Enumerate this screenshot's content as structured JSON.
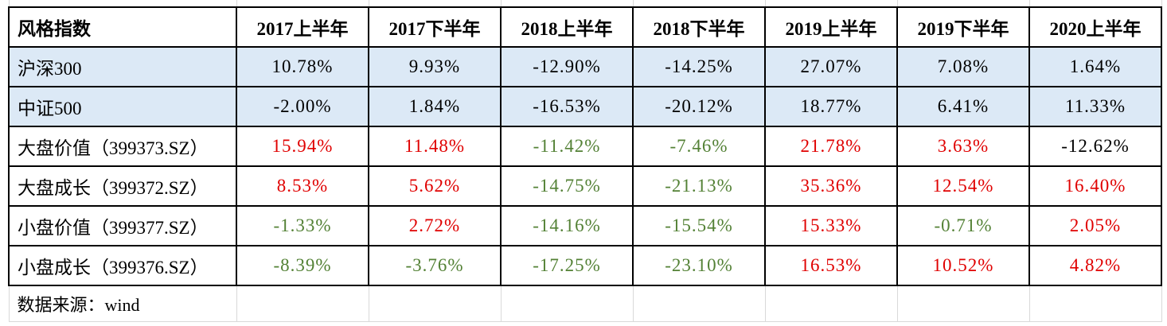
{
  "chart_data": {
    "type": "table",
    "columns": [
      "风格指数",
      "2017上半年",
      "2017下半年",
      "2018上半年",
      "2018下半年",
      "2019上半年",
      "2019下半年",
      "2020上半年"
    ],
    "rows": [
      {
        "label": "沪深300",
        "highlight": true,
        "values": [
          {
            "text": "10.78%",
            "color": "black"
          },
          {
            "text": "9.93%",
            "color": "black"
          },
          {
            "text": "-12.90%",
            "color": "black"
          },
          {
            "text": "-14.25%",
            "color": "black"
          },
          {
            "text": "27.07%",
            "color": "black"
          },
          {
            "text": "7.08%",
            "color": "black"
          },
          {
            "text": "1.64%",
            "color": "black"
          }
        ]
      },
      {
        "label": "中证500",
        "highlight": true,
        "values": [
          {
            "text": "-2.00%",
            "color": "black"
          },
          {
            "text": "1.84%",
            "color": "black"
          },
          {
            "text": "-16.53%",
            "color": "black"
          },
          {
            "text": "-20.12%",
            "color": "black"
          },
          {
            "text": "18.77%",
            "color": "black"
          },
          {
            "text": "6.41%",
            "color": "black"
          },
          {
            "text": "11.33%",
            "color": "black"
          }
        ]
      },
      {
        "label": "大盘价值（399373.SZ）",
        "highlight": false,
        "values": [
          {
            "text": "15.94%",
            "color": "red"
          },
          {
            "text": "11.48%",
            "color": "red"
          },
          {
            "text": "-11.42%",
            "color": "green"
          },
          {
            "text": "-7.46%",
            "color": "green"
          },
          {
            "text": "21.78%",
            "color": "red"
          },
          {
            "text": "3.63%",
            "color": "red"
          },
          {
            "text": "-12.62%",
            "color": "black"
          }
        ]
      },
      {
        "label": "大盘成长（399372.SZ）",
        "highlight": false,
        "values": [
          {
            "text": "8.53%",
            "color": "red"
          },
          {
            "text": "5.62%",
            "color": "red"
          },
          {
            "text": "-14.75%",
            "color": "green"
          },
          {
            "text": "-21.13%",
            "color": "green"
          },
          {
            "text": "35.36%",
            "color": "red"
          },
          {
            "text": "12.54%",
            "color": "red"
          },
          {
            "text": "16.40%",
            "color": "red"
          }
        ]
      },
      {
        "label": "小盘价值（399377.SZ）",
        "highlight": false,
        "values": [
          {
            "text": "-1.33%",
            "color": "green"
          },
          {
            "text": "2.72%",
            "color": "red"
          },
          {
            "text": "-14.16%",
            "color": "green"
          },
          {
            "text": "-15.54%",
            "color": "green"
          },
          {
            "text": "15.33%",
            "color": "red"
          },
          {
            "text": "-0.71%",
            "color": "green"
          },
          {
            "text": "2.05%",
            "color": "red"
          }
        ]
      },
      {
        "label": "小盘成长（399376.SZ）",
        "highlight": false,
        "values": [
          {
            "text": "-8.39%",
            "color": "green"
          },
          {
            "text": "-3.76%",
            "color": "green"
          },
          {
            "text": "-17.25%",
            "color": "green"
          },
          {
            "text": "-23.10%",
            "color": "green"
          },
          {
            "text": "16.53%",
            "color": "red"
          },
          {
            "text": "10.52%",
            "color": "red"
          },
          {
            "text": "4.82%",
            "color": "red"
          }
        ]
      }
    ],
    "source_note": "数据来源：wind"
  },
  "colors": {
    "red": "#e00000",
    "green": "#538135",
    "black": "#000000",
    "highlight_bg": "#dce9f6",
    "border": "#000000",
    "gridline": "#d9d9d9"
  }
}
